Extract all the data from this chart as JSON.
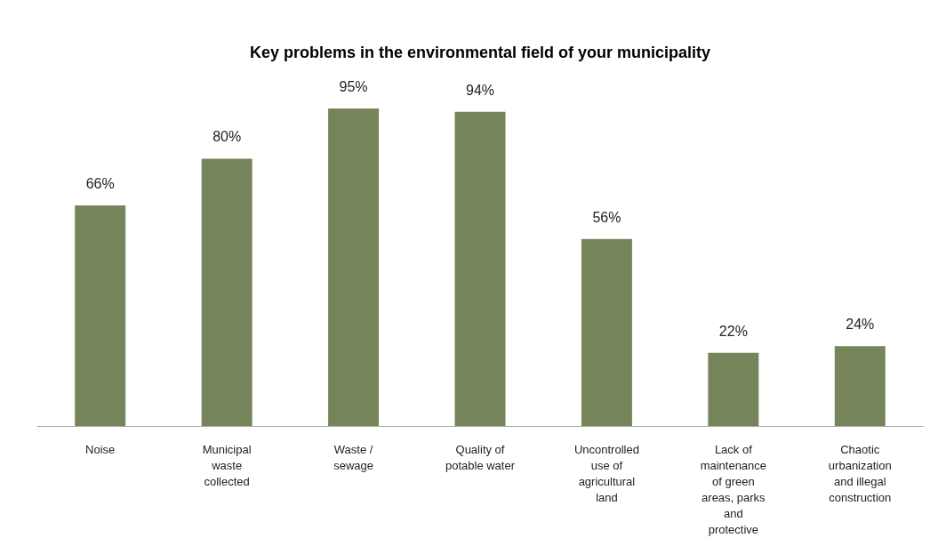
{
  "chart_data": {
    "type": "bar",
    "title": "Key problems in the environmental field of your municipality",
    "categories": [
      "Noise",
      "Municipal waste collected",
      "Waste / sewage",
      "Quality of potable water",
      "Uncontrolled use of agricultural land",
      "Lack of maintenance of green areas, parks and protective",
      "Chaotic urbanization and illegal construction"
    ],
    "values": [
      66,
      80,
      95,
      94,
      56,
      22,
      24
    ],
    "value_labels": [
      "66%",
      "80%",
      "95%",
      "94%",
      "56%",
      "22%",
      "24%"
    ],
    "color": "#76845a"
  }
}
